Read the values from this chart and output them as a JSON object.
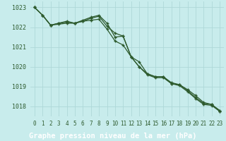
{
  "title": "Graphe pression niveau de la mer (hPa)",
  "bg_color": "#c8ecec",
  "grid_color": "#aed8d8",
  "line_color": "#2d5a2d",
  "bottom_bar_color": "#4a7a4a",
  "text_color": "#1a3a1a",
  "tick_label_color": "#2d5a2d",
  "x": [
    0,
    1,
    2,
    3,
    4,
    5,
    6,
    7,
    8,
    9,
    10,
    11,
    12,
    13,
    14,
    15,
    16,
    17,
    18,
    19,
    20,
    21,
    22,
    23
  ],
  "line1": [
    1023.0,
    1022.6,
    1022.1,
    1022.15,
    1022.2,
    1022.2,
    1022.3,
    1022.45,
    1022.55,
    1022.05,
    1021.7,
    1021.55,
    1020.5,
    1020.0,
    1019.6,
    1019.45,
    1019.45,
    1019.15,
    1019.05,
    1018.75,
    1018.4,
    1018.1,
    1018.05,
    1017.75
  ],
  "line2": [
    1023.0,
    1022.6,
    1022.1,
    1022.2,
    1022.3,
    1022.2,
    1022.35,
    1022.5,
    1022.6,
    1022.2,
    1021.5,
    1021.55,
    1020.5,
    1020.25,
    1019.65,
    1019.5,
    1019.5,
    1019.2,
    1019.1,
    1018.8,
    1018.45,
    1018.15,
    1018.1,
    1017.75
  ],
  "line3": [
    1023.0,
    1022.6,
    1022.1,
    1022.2,
    1022.25,
    1022.2,
    1022.3,
    1022.35,
    1022.4,
    1021.9,
    1021.3,
    1021.1,
    1020.5,
    1020.0,
    1019.65,
    1019.5,
    1019.5,
    1019.15,
    1019.1,
    1018.85,
    1018.55,
    1018.2,
    1018.1,
    1017.8
  ],
  "ylim_min": 1017.5,
  "ylim_max": 1023.3,
  "yticks": [
    1018,
    1019,
    1020,
    1021,
    1022,
    1023
  ],
  "xtick_labels": [
    "0",
    "1",
    "2",
    "3",
    "4",
    "5",
    "6",
    "7",
    "8",
    "9",
    "10",
    "11",
    "12",
    "13",
    "14",
    "15",
    "16",
    "17",
    "18",
    "19",
    "20",
    "21",
    "22",
    "23"
  ]
}
